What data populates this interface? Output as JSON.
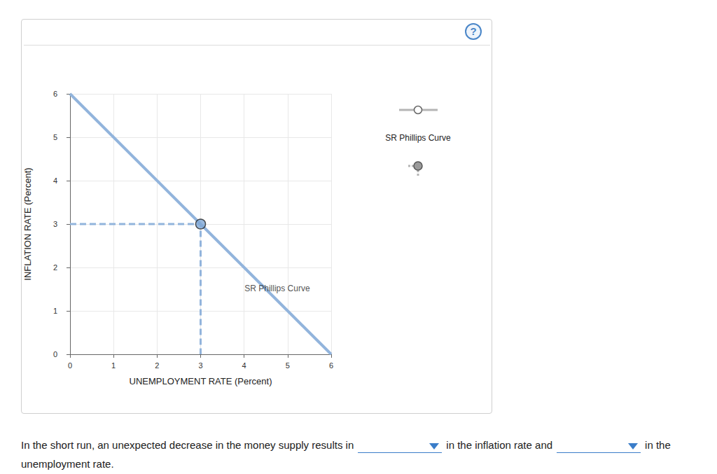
{
  "chart_data": {
    "type": "line",
    "x_label": "UNEMPLOYMENT RATE (Percent)",
    "y_label": "INFLATION RATE (Percent)",
    "xlim": [
      0,
      6
    ],
    "xticks": [
      0,
      1,
      2,
      3,
      4,
      5,
      6
    ],
    "ylim": [
      0,
      6
    ],
    "yticks": [
      0,
      1,
      2,
      3,
      4,
      5,
      6
    ],
    "grid": true,
    "series": [
      {
        "name": "SR Phillips Curve",
        "type": "line",
        "x": [
          0,
          6
        ],
        "values": [
          6,
          0
        ],
        "color": "#92b4dc",
        "marker": "none",
        "line_style": "solid"
      },
      {
        "type": "line",
        "x": [
          0,
          3,
          3
        ],
        "values": [
          3,
          3,
          0
        ],
        "color": "#92b4dc",
        "marker": "none",
        "line_style": "dashed"
      },
      {
        "type": "scatter",
        "x": [
          3
        ],
        "values": [
          3
        ],
        "color": "#7fa8d6",
        "marker": "circle"
      }
    ],
    "annotations": [
      {
        "text": "SR Phillips Curve",
        "x": 4.76,
        "y": 1.52
      }
    ]
  },
  "palette": {
    "label": "SR Phillips Curve"
  },
  "help": "?",
  "question": {
    "before": "In the short run, an unexpected decrease in the money supply results in",
    "middle": "in the inflation rate and",
    "after": "in the unemployment rate."
  }
}
